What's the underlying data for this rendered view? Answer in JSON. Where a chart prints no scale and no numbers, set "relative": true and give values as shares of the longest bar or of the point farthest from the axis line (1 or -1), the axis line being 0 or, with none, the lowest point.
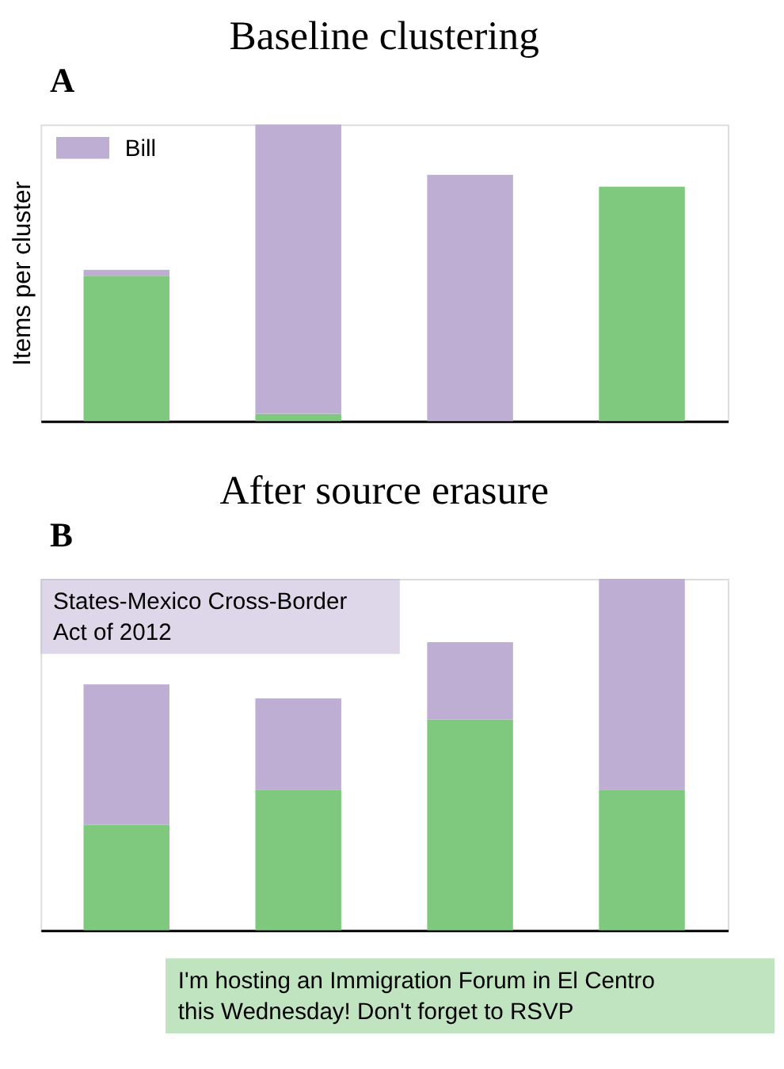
{
  "chart_data": [
    {
      "type": "bar",
      "title": "Baseline clustering",
      "ylabel": "Items per cluster",
      "relative": true,
      "stacked": true,
      "legend": "top left",
      "annotations": [
        "A"
      ],
      "categories": [
        null,
        null,
        null,
        null
      ],
      "series": [
        {
          "color": "#7fc97f",
          "values": [
            0.49,
            0.025,
            0,
            0.79
          ]
        },
        {
          "name": "Bill",
          "color": "#beaed4",
          "values": [
            0.02,
            0.975,
            0.83,
            0
          ]
        }
      ]
    },
    {
      "type": "bar",
      "title": "After source erasure",
      "relative": true,
      "stacked": true,
      "annotations": [
        "B",
        "States-Mexico Cross-Border\nAct of 2012",
        "I'm hosting an Immigration Forum in El Centro\nthis Wednesday! Don't forget to RSVP"
      ],
      "categories": [
        null,
        null,
        null,
        null
      ],
      "series": [
        {
          "color": "#7fc97f",
          "values": [
            0.3,
            0.4,
            0.6,
            0.4
          ]
        },
        {
          "color": "#beaed4",
          "values": [
            0.4,
            0.26,
            0.22,
            0.6
          ]
        }
      ]
    }
  ]
}
